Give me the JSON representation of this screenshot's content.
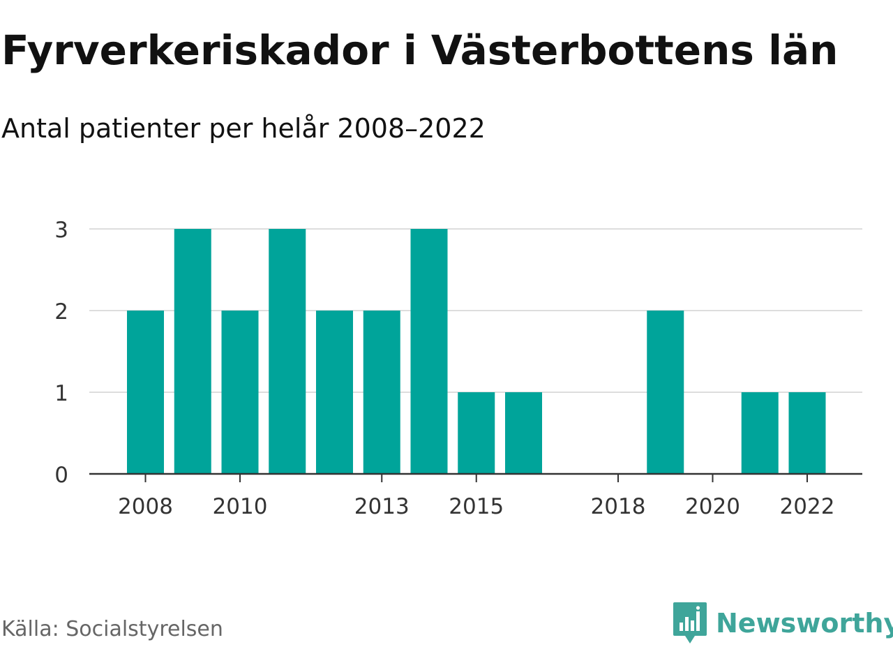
{
  "header": {
    "title": "Fyrverkeriskador i Västerbottens län",
    "subtitle": "Antal patienter per helår 2008–2022"
  },
  "footer": {
    "source": "Källa: Socialstyrelsen",
    "brand": "Newsworthy",
    "brand_icon": "newsworthy-bar-chart-logo-icon"
  },
  "colors": {
    "bar": "#00a49a",
    "grid": "#dddddd",
    "axis": "#333333",
    "brand": "#3fa59a"
  },
  "chart_data": {
    "type": "bar",
    "categories": [
      "2008",
      "2009",
      "2010",
      "2011",
      "2012",
      "2013",
      "2014",
      "2015",
      "2016",
      "2017",
      "2018",
      "2019",
      "2020",
      "2021",
      "2022"
    ],
    "values": [
      2,
      3,
      2,
      3,
      2,
      2,
      3,
      1,
      1,
      0,
      0,
      2,
      0,
      1,
      1
    ],
    "x_tick_labels": [
      "2008",
      "2010",
      "2013",
      "2015",
      "2018",
      "2020",
      "2022"
    ],
    "y_ticks": [
      0,
      1,
      2,
      3
    ],
    "ylim": [
      0,
      3
    ],
    "grid": true,
    "legend": "none"
  }
}
